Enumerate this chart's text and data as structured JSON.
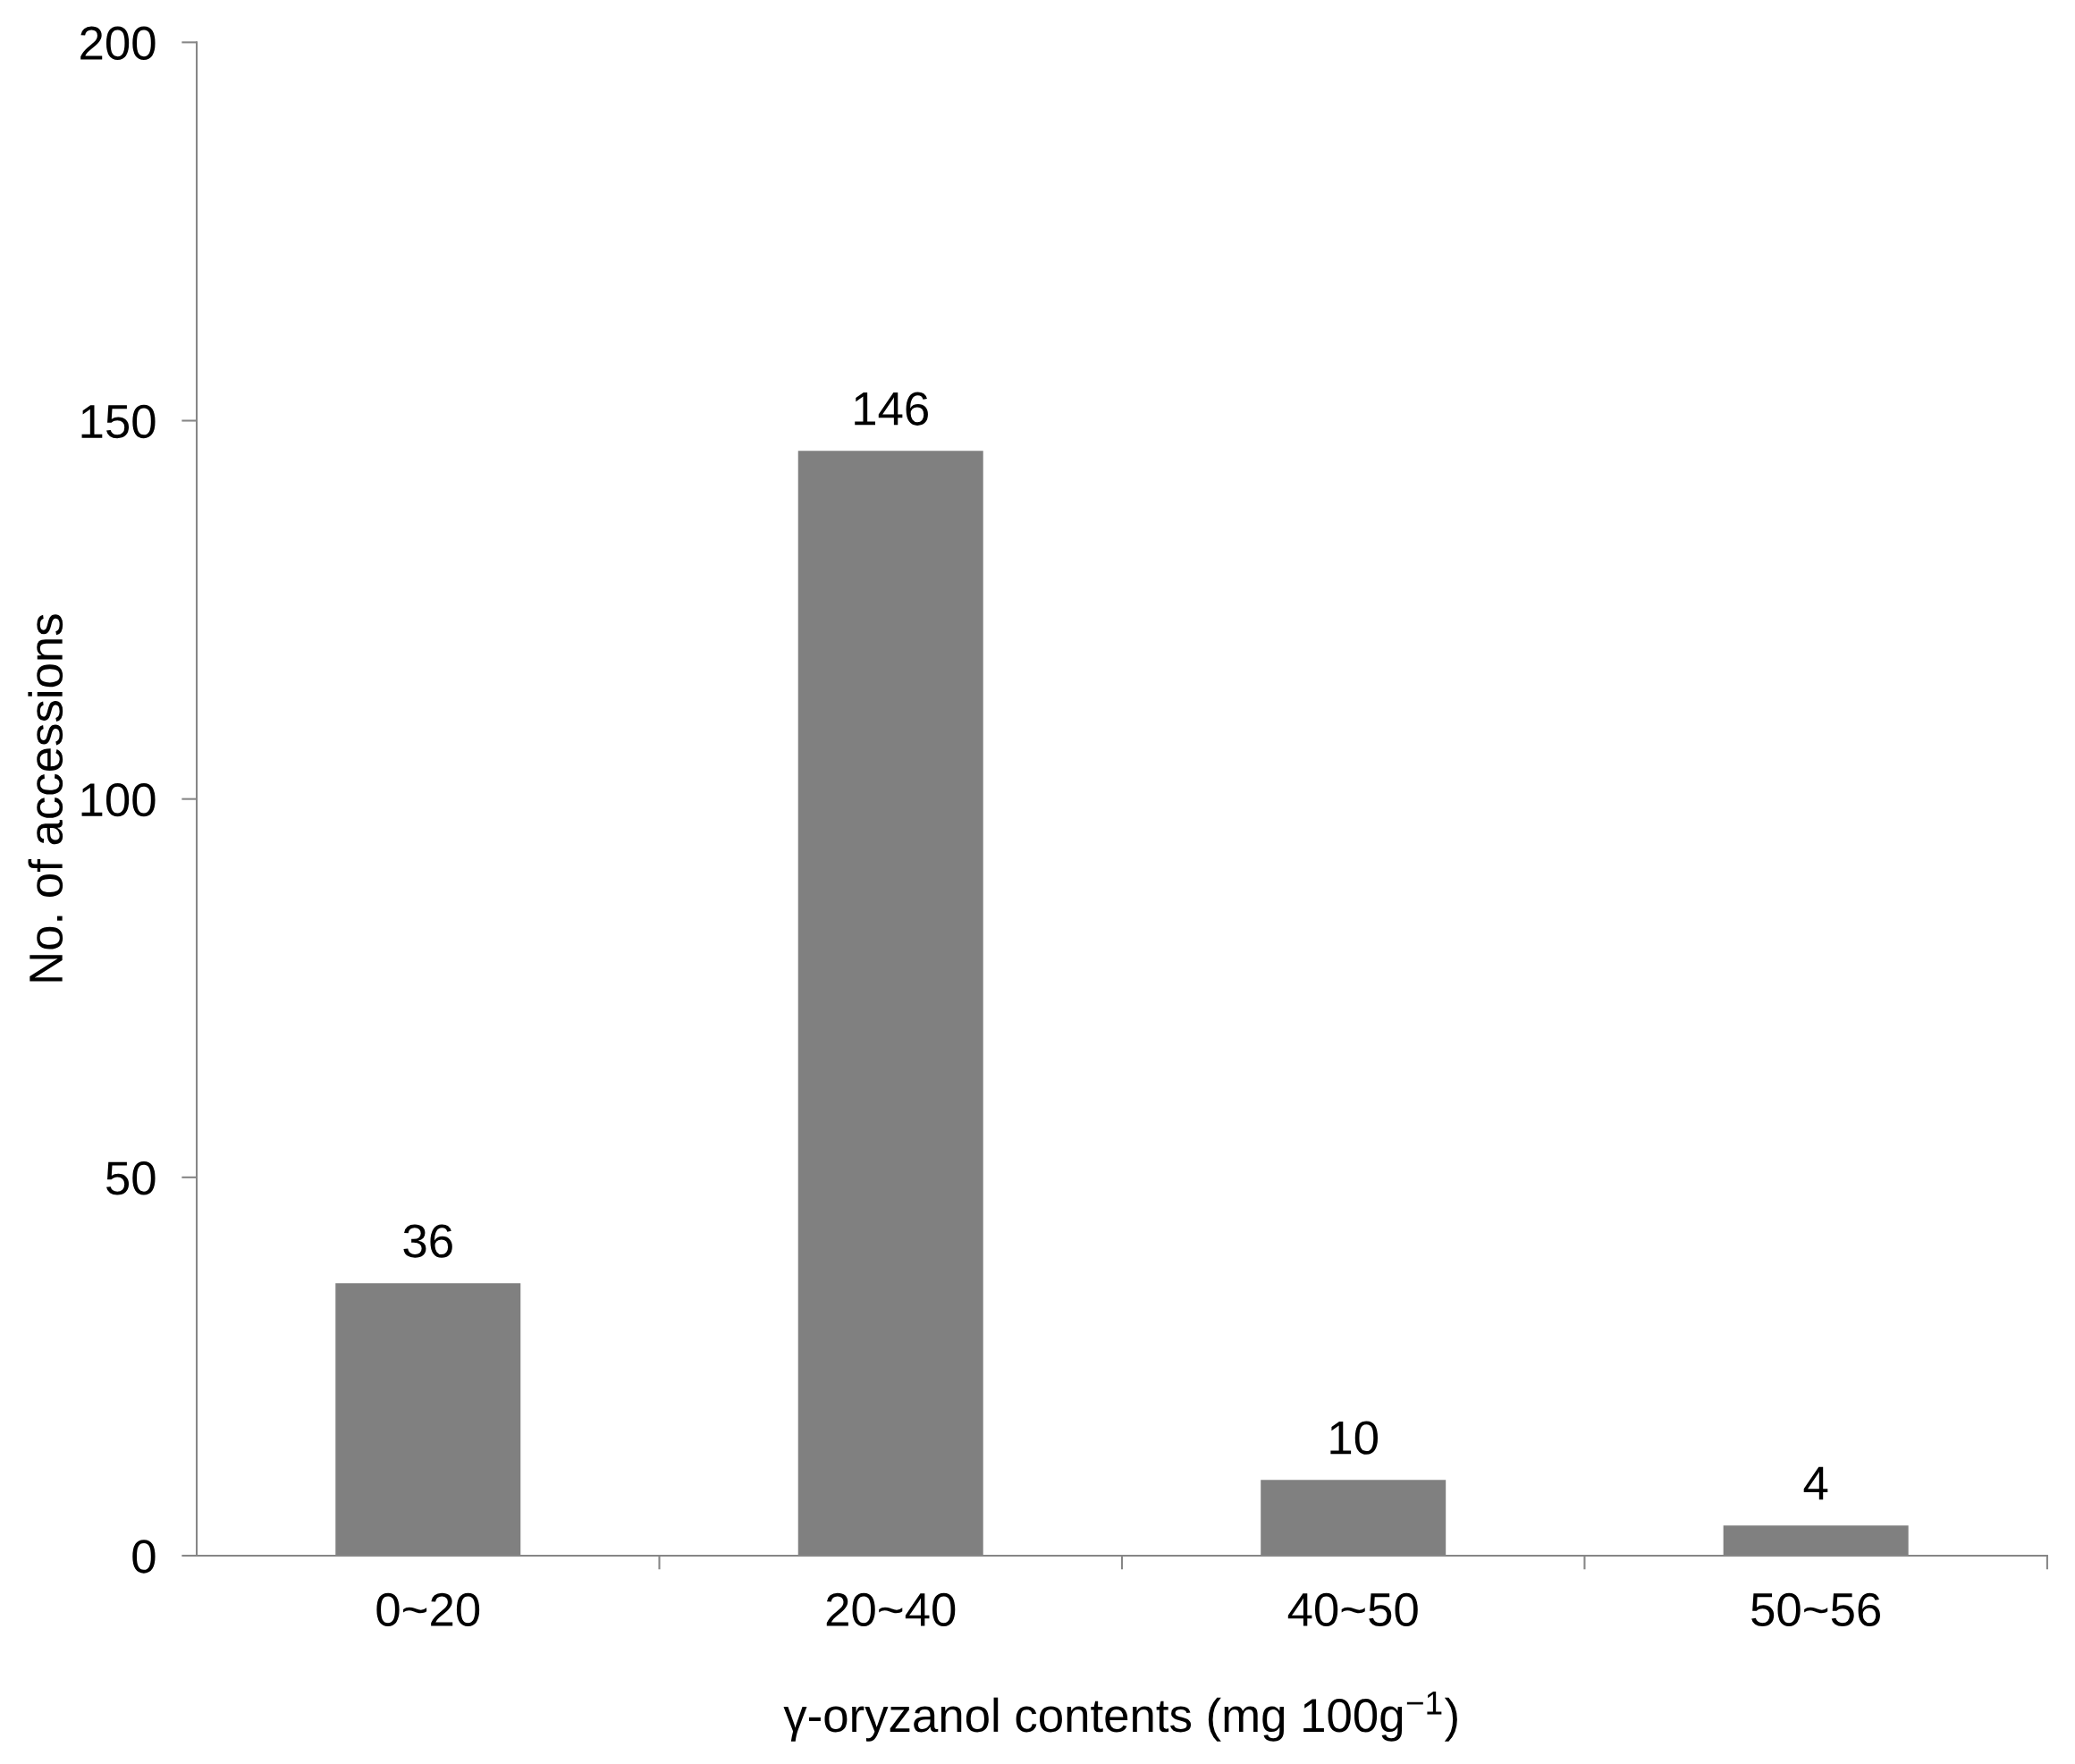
{
  "chart_data": {
    "type": "bar",
    "xlabel": "γ-oryzanol contents (mg 100g$^{−1}$)",
    "ylabel": "No. of accessions",
    "categories": [
      "0~20",
      "20~40",
      "40~50",
      "50~56"
    ],
    "values": [
      36,
      146,
      10,
      4
    ],
    "color": "#808080",
    "ylim": [
      0,
      200
    ],
    "yticks": [
      0,
      50,
      100,
      150,
      200
    ],
    "data_labels": true,
    "grid": false
  }
}
